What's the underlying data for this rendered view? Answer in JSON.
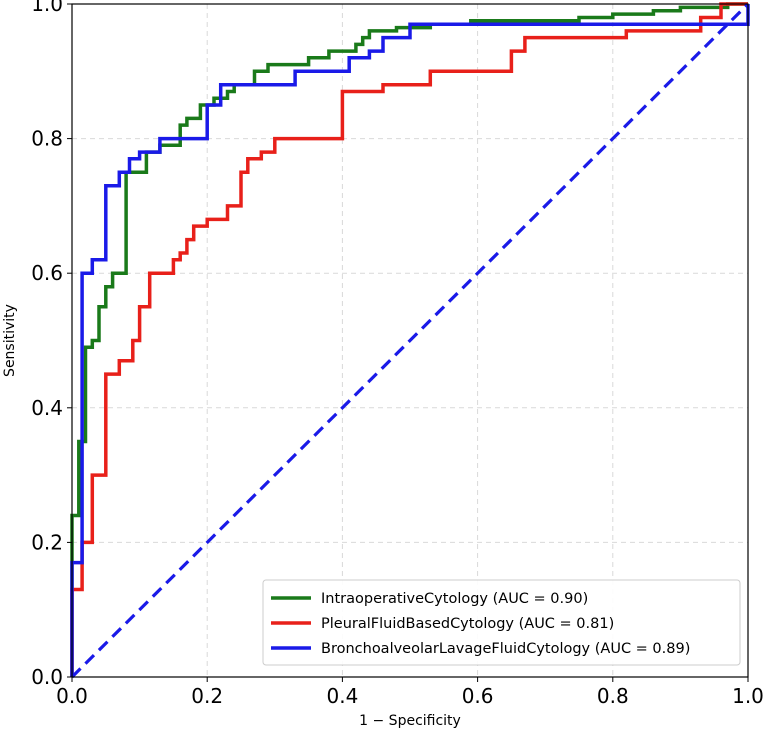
{
  "chart_data": {
    "type": "line",
    "title": "",
    "xlabel": "1 − Specificity",
    "ylabel": "Sensitivity",
    "xlim": [
      0,
      1
    ],
    "ylim": [
      0,
      1
    ],
    "xticks": [
      "0.0",
      "0.2",
      "0.4",
      "0.6",
      "0.8",
      "1.0"
    ],
    "yticks": [
      "0.0",
      "0.2",
      "0.4",
      "0.6",
      "0.8",
      "1.0"
    ],
    "grid": true,
    "legend_position": "bottom-right",
    "series": [
      {
        "name": "IntraoperativeCytology",
        "legend_label": "IntraoperativeCytology (AUC = 0.90)",
        "auc": 0.9,
        "color": "#1a7a1a",
        "points": [
          [
            0,
            0
          ],
          [
            0,
            0.24
          ],
          [
            0.01,
            0.24
          ],
          [
            0.01,
            0.35
          ],
          [
            0.02,
            0.35
          ],
          [
            0.02,
            0.49
          ],
          [
            0.03,
            0.49
          ],
          [
            0.03,
            0.5
          ],
          [
            0.04,
            0.5
          ],
          [
            0.04,
            0.55
          ],
          [
            0.05,
            0.55
          ],
          [
            0.05,
            0.58
          ],
          [
            0.06,
            0.58
          ],
          [
            0.06,
            0.6
          ],
          [
            0.07,
            0.6
          ],
          [
            0.08,
            0.6
          ],
          [
            0.08,
            0.75
          ],
          [
            0.09,
            0.75
          ],
          [
            0.11,
            0.75
          ],
          [
            0.11,
            0.78
          ],
          [
            0.13,
            0.78
          ],
          [
            0.13,
            0.79
          ],
          [
            0.16,
            0.79
          ],
          [
            0.16,
            0.82
          ],
          [
            0.17,
            0.82
          ],
          [
            0.17,
            0.83
          ],
          [
            0.19,
            0.83
          ],
          [
            0.19,
            0.85
          ],
          [
            0.21,
            0.85
          ],
          [
            0.21,
            0.86
          ],
          [
            0.23,
            0.86
          ],
          [
            0.23,
            0.87
          ],
          [
            0.24,
            0.87
          ],
          [
            0.24,
            0.88
          ],
          [
            0.27,
            0.88
          ],
          [
            0.27,
            0.9
          ],
          [
            0.29,
            0.9
          ],
          [
            0.29,
            0.91
          ],
          [
            0.31,
            0.91
          ],
          [
            0.35,
            0.91
          ],
          [
            0.35,
            0.92
          ],
          [
            0.38,
            0.92
          ],
          [
            0.38,
            0.93
          ],
          [
            0.41,
            0.93
          ],
          [
            0.42,
            0.93
          ],
          [
            0.42,
            0.94
          ],
          [
            0.43,
            0.94
          ],
          [
            0.43,
            0.95
          ],
          [
            0.44,
            0.95
          ],
          [
            0.44,
            0.96
          ],
          [
            0.47,
            0.96
          ],
          [
            0.48,
            0.96
          ],
          [
            0.48,
            0.965
          ],
          [
            0.53,
            0.965
          ],
          [
            0.53,
            0.97
          ],
          [
            0.59,
            0.97
          ],
          [
            0.59,
            0.975
          ],
          [
            0.75,
            0.975
          ],
          [
            0.75,
            0.98
          ],
          [
            0.8,
            0.98
          ],
          [
            0.8,
            0.985
          ],
          [
            0.86,
            0.985
          ],
          [
            0.86,
            0.99
          ],
          [
            0.9,
            0.99
          ],
          [
            0.9,
            0.995
          ],
          [
            0.97,
            0.995
          ],
          [
            0.97,
            1.0
          ],
          [
            1.0,
            1.0
          ]
        ]
      },
      {
        "name": "PleuralFluidBasedCytology",
        "legend_label": "PleuralFluidBasedCytology (AUC = 0.81)",
        "auc": 0.81,
        "color": "#e8201a",
        "points": [
          [
            0,
            0
          ],
          [
            0,
            0.13
          ],
          [
            0.015,
            0.13
          ],
          [
            0.015,
            0.2
          ],
          [
            0.03,
            0.2
          ],
          [
            0.03,
            0.3
          ],
          [
            0.05,
            0.3
          ],
          [
            0.05,
            0.45
          ],
          [
            0.07,
            0.45
          ],
          [
            0.07,
            0.47
          ],
          [
            0.09,
            0.47
          ],
          [
            0.09,
            0.5
          ],
          [
            0.1,
            0.5
          ],
          [
            0.1,
            0.55
          ],
          [
            0.115,
            0.55
          ],
          [
            0.115,
            0.6
          ],
          [
            0.15,
            0.6
          ],
          [
            0.15,
            0.62
          ],
          [
            0.16,
            0.62
          ],
          [
            0.16,
            0.63
          ],
          [
            0.17,
            0.63
          ],
          [
            0.17,
            0.65
          ],
          [
            0.18,
            0.65
          ],
          [
            0.18,
            0.67
          ],
          [
            0.2,
            0.67
          ],
          [
            0.2,
            0.68
          ],
          [
            0.23,
            0.68
          ],
          [
            0.23,
            0.7
          ],
          [
            0.25,
            0.7
          ],
          [
            0.25,
            0.75
          ],
          [
            0.26,
            0.75
          ],
          [
            0.26,
            0.77
          ],
          [
            0.28,
            0.77
          ],
          [
            0.28,
            0.78
          ],
          [
            0.3,
            0.78
          ],
          [
            0.3,
            0.8
          ],
          [
            0.33,
            0.8
          ],
          [
            0.4,
            0.8
          ],
          [
            0.4,
            0.87
          ],
          [
            0.46,
            0.87
          ],
          [
            0.46,
            0.88
          ],
          [
            0.53,
            0.88
          ],
          [
            0.53,
            0.9
          ],
          [
            0.65,
            0.9
          ],
          [
            0.65,
            0.93
          ],
          [
            0.67,
            0.93
          ],
          [
            0.67,
            0.95
          ],
          [
            0.82,
            0.95
          ],
          [
            0.82,
            0.96
          ],
          [
            0.93,
            0.96
          ],
          [
            0.93,
            0.98
          ],
          [
            0.96,
            0.98
          ],
          [
            0.96,
            1.0
          ],
          [
            1.0,
            1.0
          ]
        ]
      },
      {
        "name": "BronchoalveolarLavageFluidCytology",
        "legend_label": "BronchoalveolarLavageFluidCytology (AUC = 0.89)",
        "auc": 0.89,
        "color": "#1a1ae8",
        "points": [
          [
            0,
            0
          ],
          [
            0,
            0.17
          ],
          [
            0.015,
            0.17
          ],
          [
            0.015,
            0.6
          ],
          [
            0.03,
            0.6
          ],
          [
            0.03,
            0.62
          ],
          [
            0.05,
            0.62
          ],
          [
            0.05,
            0.73
          ],
          [
            0.07,
            0.73
          ],
          [
            0.07,
            0.75
          ],
          [
            0.085,
            0.75
          ],
          [
            0.085,
            0.77
          ],
          [
            0.1,
            0.77
          ],
          [
            0.1,
            0.78
          ],
          [
            0.13,
            0.78
          ],
          [
            0.13,
            0.8
          ],
          [
            0.2,
            0.8
          ],
          [
            0.2,
            0.85
          ],
          [
            0.22,
            0.85
          ],
          [
            0.22,
            0.88
          ],
          [
            0.28,
            0.88
          ],
          [
            0.33,
            0.88
          ],
          [
            0.33,
            0.9
          ],
          [
            0.41,
            0.9
          ],
          [
            0.41,
            0.92
          ],
          [
            0.44,
            0.92
          ],
          [
            0.44,
            0.93
          ],
          [
            0.46,
            0.93
          ],
          [
            0.46,
            0.95
          ],
          [
            0.5,
            0.95
          ],
          [
            0.5,
            0.97
          ],
          [
            1.0,
            0.97
          ],
          [
            1.0,
            1.0
          ]
        ]
      },
      {
        "name": "Reference",
        "legend_label": "",
        "color": "#1a1ae8",
        "dashed": true,
        "points": [
          [
            0,
            0
          ],
          [
            1,
            1
          ]
        ]
      }
    ]
  }
}
